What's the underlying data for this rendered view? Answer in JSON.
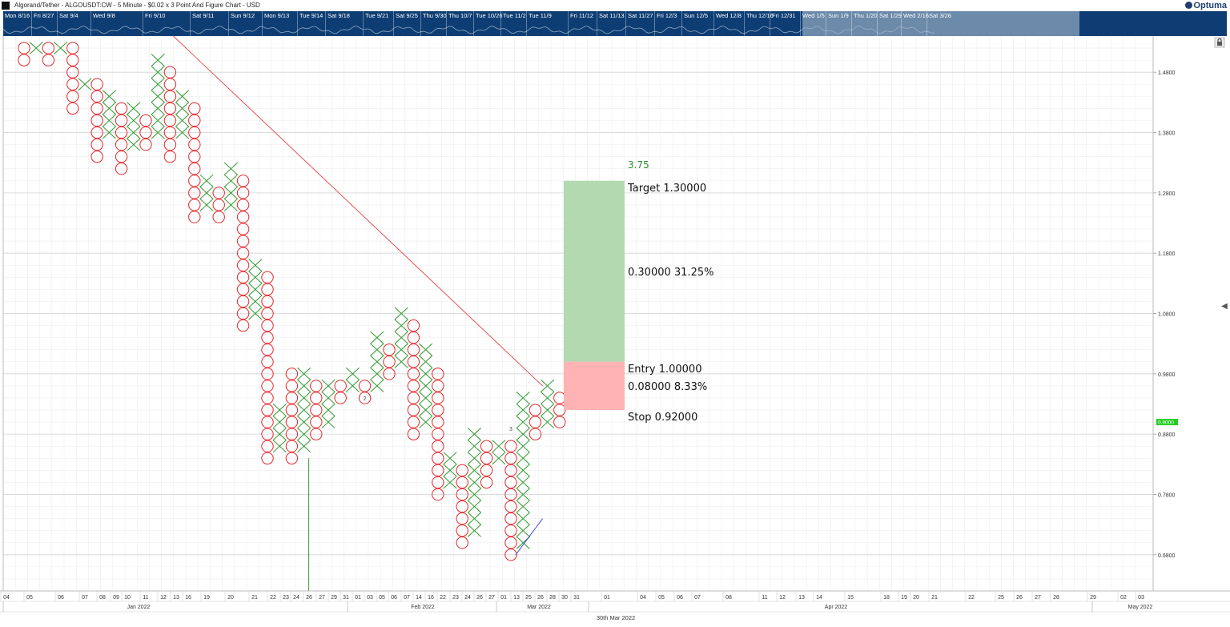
{
  "header": {
    "title": "Algorand/Tether - ALGOUSDT:CW - 5 Minute - $0.02 x 3 Point And Figure Chart - USD",
    "logo_text": "Optuma",
    "lock_icon": "lock-icon",
    "collapse_icon": "chevron-left-icon"
  },
  "navigator": {
    "labels": [
      "Mon 8/16",
      "Fri 8/27",
      "Sat 9/4",
      "Wed 9/8",
      "Fri 9/10",
      "Sat 9/11",
      "Sun 9/12",
      "Mon 9/13",
      "Tue 9/14",
      "Sat 9/18",
      "Tue 9/21",
      "Sat 9/25",
      "Thu 9/30",
      "Thu 10/7",
      "Tue 10/26",
      "Tue 11/2",
      "Tue 11/9",
      "Fri 11/12",
      "Sat 11/13",
      "Sat 11/27",
      "Fri 12/3",
      "Sun 12/5",
      "Wed 12/8",
      "Thu 12/16",
      "Fri 12/31",
      "Wed 1/5",
      "Sun 1/9",
      "Thu 1/20",
      "Sat 1/29",
      "Wed 2/16",
      "Sat 3/26"
    ],
    "color": "#0d3d73"
  },
  "chart_data": {
    "type": "point_and_figure",
    "box_size": 0.02,
    "reversal": 3,
    "ylim": [
      0.62,
      1.54
    ],
    "y_ticks": [
      0.68,
      0.78,
      0.88,
      0.98,
      1.08,
      1.18,
      1.28,
      1.38,
      1.48
    ],
    "y_tick_labels": [
      "0.6800",
      "0.7800",
      "0.8800",
      "0.9800",
      "1.0800",
      "1.1800",
      "1.2800",
      "1.3800",
      "1.4800"
    ],
    "last_price": 0.9,
    "last_price_label": "0.9000",
    "last_price_color": "#22cc22",
    "x_color": "#2e9a2e",
    "o_color": "#e8262a",
    "columns": [
      {
        "type": "O",
        "high": 1.52,
        "low": 1.5
      },
      {
        "type": "X",
        "high": 1.52,
        "low": 1.52
      },
      {
        "type": "O",
        "high": 1.52,
        "low": 1.5
      },
      {
        "type": "X",
        "high": 1.52,
        "low": 1.52
      },
      {
        "type": "O",
        "high": 1.52,
        "low": 1.42
      },
      {
        "type": "X",
        "high": 1.46,
        "low": 1.46
      },
      {
        "type": "O",
        "high": 1.46,
        "low": 1.34
      },
      {
        "type": "X",
        "high": 1.44,
        "low": 1.38
      },
      {
        "type": "O",
        "high": 1.42,
        "low": 1.32
      },
      {
        "type": "X",
        "high": 1.42,
        "low": 1.36
      },
      {
        "type": "O",
        "high": 1.4,
        "low": 1.36
      },
      {
        "type": "X",
        "high": 1.5,
        "low": 1.38
      },
      {
        "type": "O",
        "high": 1.48,
        "low": 1.34
      },
      {
        "type": "X",
        "high": 1.44,
        "low": 1.38
      },
      {
        "type": "O",
        "high": 1.42,
        "low": 1.24
      },
      {
        "type": "X",
        "high": 1.3,
        "low": 1.26
      },
      {
        "type": "O",
        "high": 1.28,
        "low": 1.24
      },
      {
        "type": "X",
        "high": 1.32,
        "low": 1.26
      },
      {
        "type": "O",
        "high": 1.3,
        "low": 1.06
      },
      {
        "type": "X",
        "high": 1.16,
        "low": 1.08
      },
      {
        "type": "O",
        "high": 1.14,
        "low": 0.84
      },
      {
        "type": "X",
        "high": 0.92,
        "low": 0.86
      },
      {
        "type": "O",
        "high": 0.98,
        "low": 0.84
      },
      {
        "type": "X",
        "high": 0.98,
        "low": 0.86
      },
      {
        "type": "O",
        "high": 0.96,
        "low": 0.88
      },
      {
        "type": "X",
        "high": 0.96,
        "low": 0.9
      },
      {
        "type": "O",
        "high": 0.96,
        "low": 0.94
      },
      {
        "type": "X",
        "high": 0.98,
        "low": 0.96
      },
      {
        "type": "O",
        "high": 0.96,
        "low": 0.94
      },
      {
        "type": "X",
        "high": 1.04,
        "low": 0.96
      },
      {
        "type": "O",
        "high": 1.02,
        "low": 0.98
      },
      {
        "type": "X",
        "high": 1.08,
        "low": 1.0
      },
      {
        "type": "O",
        "high": 1.06,
        "low": 0.88
      },
      {
        "type": "X",
        "high": 1.02,
        "low": 0.9
      },
      {
        "type": "O",
        "high": 0.98,
        "low": 0.78
      },
      {
        "type": "X",
        "high": 0.84,
        "low": 0.8
      },
      {
        "type": "O",
        "high": 0.82,
        "low": 0.7
      },
      {
        "type": "X",
        "high": 0.88,
        "low": 0.72
      },
      {
        "type": "O",
        "high": 0.86,
        "low": 0.8
      },
      {
        "type": "X",
        "high": 0.86,
        "low": 0.84
      },
      {
        "type": "O",
        "high": 0.86,
        "low": 0.68
      },
      {
        "type": "X",
        "high": 0.94,
        "low": 0.7
      },
      {
        "type": "O",
        "high": 0.92,
        "low": 0.88
      },
      {
        "type": "X",
        "high": 0.96,
        "low": 0.9
      },
      {
        "type": "O",
        "high": 0.94,
        "low": 0.9
      }
    ],
    "column_markers": [
      {
        "column": 28,
        "text": "2"
      },
      {
        "column": 40,
        "text": "3"
      }
    ],
    "trendline_down": {
      "color": "#e84040",
      "from": [
        12,
        1.54
      ],
      "to": [
        43,
        0.96
      ]
    },
    "trendline_up": {
      "color": "#3a3ac8",
      "from": [
        40,
        0.68
      ],
      "to": [
        43,
        0.74
      ]
    },
    "volume_marker": {
      "column": 23,
      "from": 0.84,
      "to": 0.62,
      "color": "#2e9a2e"
    },
    "trade_setup": {
      "target": 1.3,
      "entry": 1.0,
      "stop": 0.92,
      "ratio_label": "3.75",
      "target_label": "Target  1.30000",
      "reward_label": "0.30000   31.25%",
      "entry_label": "Entry  1.00000",
      "risk_label": "0.08000   8.33%",
      "stop_label": "Stop  0.92000",
      "reward_color": "#b3d9b0",
      "risk_color": "#ffb3b3",
      "ratio_color": "#2e8b2e"
    },
    "x_tick_labels": [
      "04",
      "05",
      "06",
      "07",
      "08",
      "09",
      "10",
      "11",
      "12",
      "13",
      "16",
      "19",
      "20",
      "21",
      "22",
      "23",
      "24",
      "26",
      "27",
      "29",
      "31",
      "01",
      "03",
      "05",
      "06",
      "07",
      "14",
      "16",
      "22",
      "23",
      "24",
      "26",
      "27",
      "01",
      "13",
      "25",
      "26",
      "28",
      "30",
      "31",
      "01",
      "04",
      "05",
      "06",
      "07",
      "08",
      "11",
      "12",
      "13",
      "14",
      "15",
      "18",
      "19",
      "20",
      "21",
      "22",
      "25",
      "26",
      "27",
      "28",
      "29",
      "02",
      "03"
    ],
    "months": [
      "Jan 2022",
      "Feb 2022",
      "Mar 2022",
      "Apr 2022",
      "May 2022"
    ],
    "footer_date": "30th Mar 2022"
  }
}
